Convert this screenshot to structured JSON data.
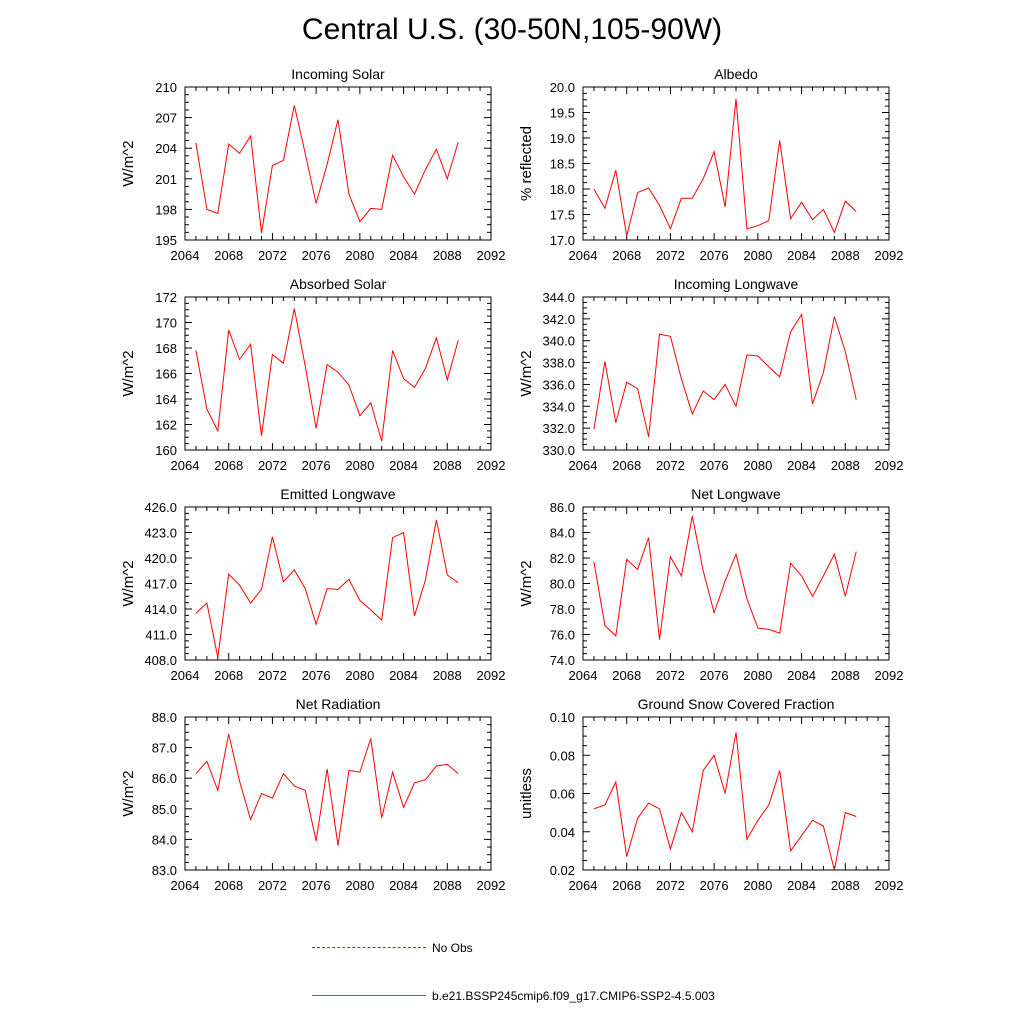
{
  "title": "Central U.S. (30-50N,105-90W)",
  "legend": [
    {
      "label": "No Obs",
      "style": "dashed",
      "color": "#3b3bd9"
    },
    {
      "label": "b.e21.BSSP245cmip6.f09_g17.CMIP6-SSP2-4.5.003",
      "style": "solid",
      "color": "#ff2a2a"
    }
  ],
  "chart_data": [
    {
      "type": "line",
      "title": "Incoming Solar",
      "ylabel": "W/m^2",
      "xlim": [
        2064,
        2092
      ],
      "xticks": [
        "2064",
        "2068",
        "2072",
        "2076",
        "2080",
        "2084",
        "2088",
        "2092"
      ],
      "ylim": [
        195,
        210
      ],
      "yticks": [
        "195",
        "198",
        "201",
        "204",
        "207",
        "210"
      ],
      "color": "#ff0000",
      "x": [
        2065,
        2066,
        2067,
        2068,
        2069,
        2070,
        2071,
        2072,
        2073,
        2074,
        2075,
        2076,
        2077,
        2078,
        2079,
        2080,
        2081,
        2082,
        2083,
        2084,
        2085,
        2086,
        2087,
        2088,
        2089
      ],
      "y": [
        204.5,
        198.0,
        197.6,
        204.4,
        203.5,
        205.2,
        195.7,
        202.3,
        202.8,
        208.2,
        203.5,
        198.6,
        202.4,
        206.8,
        199.5,
        196.8,
        198.1,
        198.0,
        203.3,
        201.2,
        199.5,
        201.9,
        203.9,
        201.0,
        204.6
      ]
    },
    {
      "type": "line",
      "title": "Albedo",
      "ylabel": "% reflected",
      "xlim": [
        2064,
        2092
      ],
      "xticks": [
        "2064",
        "2068",
        "2072",
        "2076",
        "2080",
        "2084",
        "2088",
        "2092"
      ],
      "ylim": [
        17.0,
        20.0
      ],
      "yticks": [
        "17.0",
        "17.5",
        "18.0",
        "18.5",
        "19.0",
        "19.5",
        "20.0"
      ],
      "color": "#ff0000",
      "x": [
        2065,
        2066,
        2067,
        2068,
        2069,
        2070,
        2071,
        2072,
        2073,
        2074,
        2075,
        2076,
        2077,
        2078,
        2079,
        2080,
        2081,
        2082,
        2083,
        2084,
        2085,
        2086,
        2087,
        2088,
        2089
      ],
      "y": [
        18.0,
        17.62,
        18.37,
        17.08,
        17.93,
        18.02,
        17.68,
        17.22,
        17.82,
        17.82,
        18.2,
        18.73,
        17.65,
        19.77,
        17.22,
        17.28,
        17.38,
        18.95,
        17.42,
        17.74,
        17.4,
        17.6,
        17.15,
        17.76,
        17.56
      ]
    },
    {
      "type": "line",
      "title": "Absorbed Solar",
      "ylabel": "W/m^2",
      "xlim": [
        2064,
        2092
      ],
      "xticks": [
        "2064",
        "2068",
        "2072",
        "2076",
        "2080",
        "2084",
        "2088",
        "2092"
      ],
      "ylim": [
        160,
        172
      ],
      "yticks": [
        "160",
        "162",
        "164",
        "166",
        "168",
        "170",
        "172"
      ],
      "color": "#ff0000",
      "x": [
        2065,
        2066,
        2067,
        2068,
        2069,
        2070,
        2071,
        2072,
        2073,
        2074,
        2075,
        2076,
        2077,
        2078,
        2079,
        2080,
        2081,
        2082,
        2083,
        2084,
        2085,
        2086,
        2087,
        2088,
        2089
      ],
      "y": [
        167.8,
        163.2,
        161.5,
        169.4,
        167.1,
        168.3,
        161.1,
        167.5,
        166.8,
        171.1,
        166.6,
        161.7,
        166.7,
        166.1,
        165.1,
        162.7,
        163.7,
        160.7,
        167.8,
        165.6,
        164.9,
        166.4,
        168.8,
        165.5,
        168.6
      ]
    },
    {
      "type": "line",
      "title": "Incoming Longwave",
      "ylabel": "W/m^2",
      "xlim": [
        2064,
        2092
      ],
      "xticks": [
        "2064",
        "2068",
        "2072",
        "2076",
        "2080",
        "2084",
        "2088",
        "2092"
      ],
      "ylim": [
        330.0,
        344.0
      ],
      "yticks": [
        "330.0",
        "332.0",
        "334.0",
        "336.0",
        "338.0",
        "340.0",
        "342.0",
        "344.0"
      ],
      "color": "#ff0000",
      "x": [
        2065,
        2066,
        2067,
        2068,
        2069,
        2070,
        2071,
        2072,
        2073,
        2074,
        2075,
        2076,
        2077,
        2078,
        2079,
        2080,
        2081,
        2082,
        2083,
        2084,
        2085,
        2086,
        2087,
        2088,
        2089
      ],
      "y": [
        331.9,
        338.1,
        332.5,
        336.2,
        335.6,
        331.2,
        340.6,
        340.4,
        336.5,
        333.3,
        335.4,
        334.6,
        336.0,
        334.0,
        338.7,
        338.6,
        337.6,
        336.7,
        340.8,
        342.4,
        334.2,
        337.1,
        342.2,
        339.0,
        334.6
      ]
    },
    {
      "type": "line",
      "title": "Emitted Longwave",
      "ylabel": "W/m^2",
      "xlim": [
        2064,
        2092
      ],
      "xticks": [
        "2064",
        "2068",
        "2072",
        "2076",
        "2080",
        "2084",
        "2088",
        "2092"
      ],
      "ylim": [
        408.0,
        426.0
      ],
      "yticks": [
        "408.0",
        "411.0",
        "414.0",
        "417.0",
        "420.0",
        "423.0",
        "426.0"
      ],
      "color": "#ff0000",
      "x": [
        2065,
        2066,
        2067,
        2068,
        2069,
        2070,
        2071,
        2072,
        2073,
        2074,
        2075,
        2076,
        2077,
        2078,
        2079,
        2080,
        2081,
        2082,
        2083,
        2084,
        2085,
        2086,
        2087,
        2088,
        2089
      ],
      "y": [
        413.5,
        414.7,
        408.3,
        418.1,
        416.8,
        414.7,
        416.3,
        422.5,
        417.2,
        418.6,
        416.4,
        412.2,
        416.4,
        416.3,
        417.5,
        415.0,
        413.9,
        412.7,
        422.4,
        423.0,
        413.2,
        417.4,
        424.5,
        418.0,
        417.1
      ]
    },
    {
      "type": "line",
      "title": "Net Longwave",
      "ylabel": "W/m^2",
      "xlim": [
        2064,
        2092
      ],
      "xticks": [
        "2064",
        "2068",
        "2072",
        "2076",
        "2080",
        "2084",
        "2088",
        "2092"
      ],
      "ylim": [
        74.0,
        86.0
      ],
      "yticks": [
        "74.0",
        "76.0",
        "78.0",
        "80.0",
        "82.0",
        "84.0",
        "86.0"
      ],
      "color": "#ff0000",
      "x": [
        2065,
        2066,
        2067,
        2068,
        2069,
        2070,
        2071,
        2072,
        2073,
        2074,
        2075,
        2076,
        2077,
        2078,
        2079,
        2080,
        2081,
        2082,
        2083,
        2084,
        2085,
        2086,
        2087,
        2088,
        2089
      ],
      "y": [
        81.7,
        76.7,
        75.9,
        81.9,
        81.1,
        83.6,
        75.6,
        82.1,
        80.6,
        85.3,
        81.0,
        77.7,
        80.2,
        82.3,
        78.8,
        76.5,
        76.4,
        76.1,
        81.6,
        80.6,
        79.0,
        80.6,
        82.3,
        79.0,
        82.5
      ]
    },
    {
      "type": "line",
      "title": "Net Radiation",
      "ylabel": "W/m^2",
      "xlim": [
        2064,
        2092
      ],
      "xticks": [
        "2064",
        "2068",
        "2072",
        "2076",
        "2080",
        "2084",
        "2088",
        "2092"
      ],
      "ylim": [
        83.0,
        88.0
      ],
      "yticks": [
        "83.0",
        "84.0",
        "85.0",
        "86.0",
        "87.0",
        "88.0"
      ],
      "color": "#ff0000",
      "x": [
        2065,
        2066,
        2067,
        2068,
        2069,
        2070,
        2071,
        2072,
        2073,
        2074,
        2075,
        2076,
        2077,
        2078,
        2079,
        2080,
        2081,
        2082,
        2083,
        2084,
        2085,
        2086,
        2087,
        2088,
        2089
      ],
      "y": [
        86.15,
        86.55,
        85.6,
        87.45,
        85.9,
        84.65,
        85.5,
        85.35,
        86.15,
        85.75,
        85.6,
        83.95,
        86.3,
        83.8,
        86.25,
        86.2,
        87.3,
        84.7,
        86.2,
        85.05,
        85.85,
        85.95,
        86.4,
        86.45,
        86.15
      ]
    },
    {
      "type": "line",
      "title": "Ground Snow Covered Fraction",
      "ylabel": "unitless",
      "xlim": [
        2064,
        2092
      ],
      "xticks": [
        "2064",
        "2068",
        "2072",
        "2076",
        "2080",
        "2084",
        "2088",
        "2092"
      ],
      "ylim": [
        0.02,
        0.1
      ],
      "yticks": [
        "0.02",
        "0.04",
        "0.06",
        "0.08",
        "0.10"
      ],
      "color": "#ff0000",
      "x": [
        2065,
        2066,
        2067,
        2068,
        2069,
        2070,
        2071,
        2072,
        2073,
        2074,
        2075,
        2076,
        2077,
        2078,
        2079,
        2080,
        2081,
        2082,
        2083,
        2084,
        2085,
        2086,
        2087,
        2088,
        2089
      ],
      "y": [
        0.052,
        0.054,
        0.066,
        0.027,
        0.047,
        0.055,
        0.052,
        0.031,
        0.05,
        0.04,
        0.072,
        0.08,
        0.06,
        0.092,
        0.036,
        0.046,
        0.054,
        0.072,
        0.03,
        0.038,
        0.046,
        0.043,
        0.02,
        0.05,
        0.048
      ]
    }
  ]
}
